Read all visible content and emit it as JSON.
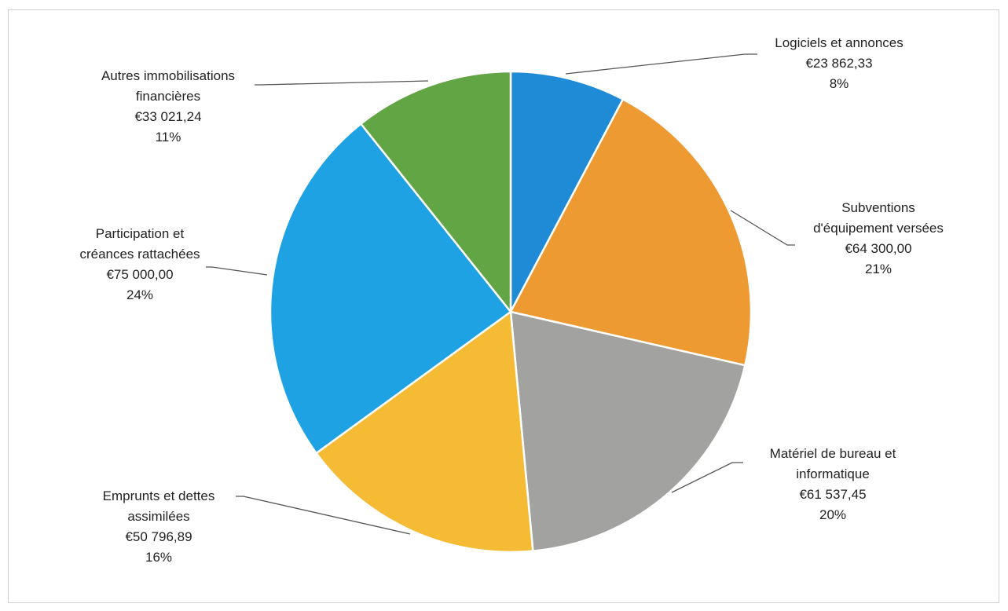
{
  "chart_data": {
    "type": "pie",
    "title": "",
    "slices": [
      {
        "name": "Logiciels et annonces",
        "name_lines": [
          "Logiciels et annonces"
        ],
        "value": 23862.33,
        "value_label": "€23 862,33",
        "percent_label": "8%",
        "color": "#1F8BD6"
      },
      {
        "name": "Subventions d'équipement versées",
        "name_lines": [
          "Subventions",
          "d'équipement versées"
        ],
        "value": 64300.0,
        "value_label": "€64 300,00",
        "percent_label": "21%",
        "color": "#EE9A33"
      },
      {
        "name": "Matériel de bureau et informatique",
        "name_lines": [
          "Matériel de bureau et",
          "informatique"
        ],
        "value": 61537.45,
        "value_label": "€61 537,45",
        "percent_label": "20%",
        "color": "#A2A3A1"
      },
      {
        "name": "Emprunts et dettes assimilées",
        "name_lines": [
          "Emprunts et dettes",
          "assimilées"
        ],
        "value": 50796.89,
        "value_label": "€50 796,89",
        "percent_label": "16%",
        "color": "#F6BB35"
      },
      {
        "name": "Participation et créances rattachées",
        "name_lines": [
          "Participation et",
          "créances rattachées"
        ],
        "value": 75000.0,
        "value_label": "€75 000,00",
        "percent_label": "24%",
        "color": "#1EA2E4"
      },
      {
        "name": "Autres immobilisations financières",
        "name_lines": [
          "Autres immobilisations",
          "financières"
        ],
        "value": 33021.24,
        "value_label": "€33 021,24",
        "percent_label": "11%",
        "color": "#62A544"
      }
    ]
  }
}
